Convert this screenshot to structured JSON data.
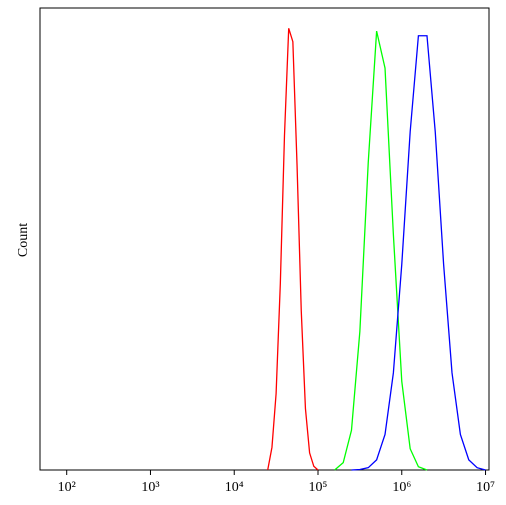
{
  "chart_data": {
    "type": "line",
    "ylabel": "Count",
    "xscale": "log",
    "xlim": [
      48,
      11000000
    ],
    "ylim": [
      0,
      100
    ],
    "xticks": [
      {
        "value": 100,
        "label": "10²"
      },
      {
        "value": 1000,
        "label": "10³"
      },
      {
        "value": 10000,
        "label": "10⁴"
      },
      {
        "value": 100000,
        "label": "10⁵"
      },
      {
        "value": 1000000,
        "label": "10⁶"
      },
      {
        "value": 10000000,
        "label": "10⁷"
      }
    ],
    "series": [
      {
        "color": "#ff0000",
        "x": [
          25100,
          28200,
          31600,
          35500,
          39800,
          44700,
          50100,
          56200,
          63100,
          70800,
          79400,
          89100,
          100000
        ],
        "values": [
          0,
          4.9,
          16.5,
          40.3,
          72.4,
          95.6,
          92.7,
          66,
          34.5,
          13.3,
          3.7,
          0.8,
          0
        ]
      },
      {
        "color": "#00ff00",
        "x": [
          158000,
          200000,
          251000,
          316000,
          398000,
          501000,
          631000,
          794000,
          1000000,
          1260000,
          1580000,
          2000000
        ],
        "values": [
          0,
          1.6,
          8.6,
          30,
          66.6,
          95,
          87,
          51,
          19.2,
          4.6,
          0.7,
          0
        ]
      },
      {
        "color": "#0000ff",
        "x": [
          251000,
          316000,
          398000,
          501000,
          631000,
          794000,
          1000000,
          1260000,
          1580000,
          2000000,
          2510000,
          3160000,
          3980000,
          5010000,
          6310000,
          7940000,
          10000000
        ],
        "values": [
          0,
          0.1,
          0.5,
          2.2,
          7.7,
          21,
          44.5,
          73.2,
          94,
          94,
          73.2,
          44.5,
          21,
          7.7,
          2.2,
          0.5,
          0
        ]
      }
    ]
  }
}
